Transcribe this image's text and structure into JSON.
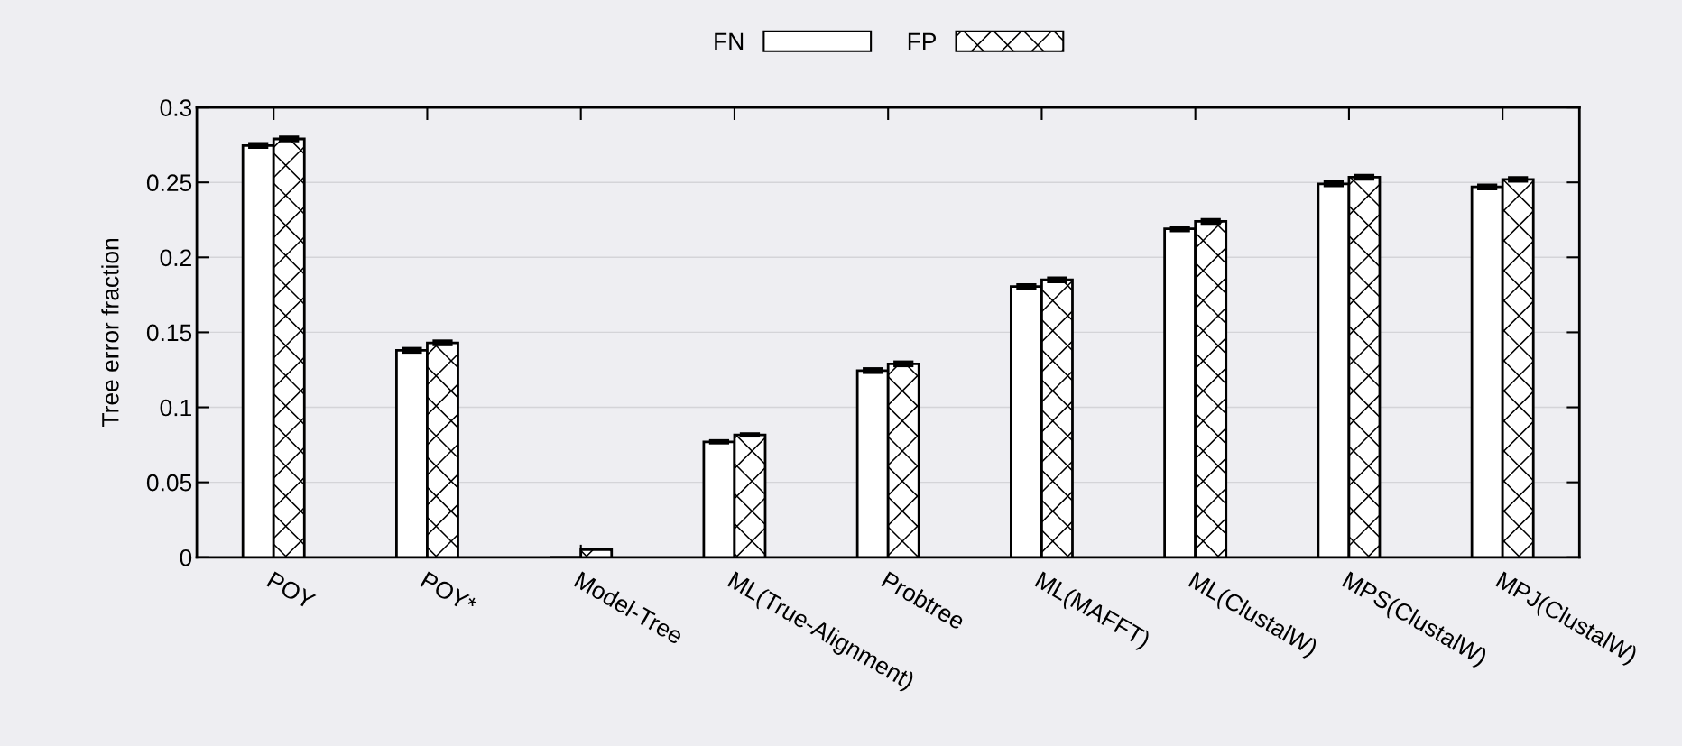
{
  "chart_data": {
    "type": "bar",
    "ylabel": "Tree error fraction",
    "categories": [
      "POY",
      "POY*",
      "Model-Tree",
      "ML(True-Alignment)",
      "Probtree",
      "ML(MAFFT)",
      "ML(ClustalW)",
      "MPS(ClustalW)",
      "MPJ(ClustalW)"
    ],
    "series": [
      {
        "name": "FN",
        "color": "#ffffff",
        "values": [
          0.2746,
          0.138,
          0,
          0.077,
          0.1245,
          0.1805,
          0.219,
          0.249,
          0.247
        ],
        "errors": [
          0.001,
          0.001,
          null,
          0.0005,
          0.001,
          0.001,
          0.001,
          0.001,
          0.001
        ]
      },
      {
        "name": "FP",
        "color": "#ffffff",
        "values": [
          0.279,
          0.143,
          0.005,
          0.0816,
          0.129,
          0.185,
          0.224,
          0.2535,
          0.252
        ],
        "errors": [
          0.001,
          0.001,
          null,
          0.0005,
          0.001,
          0.001,
          0.001,
          0.001,
          0.001
        ]
      }
    ],
    "ylim": [
      0,
      0.3
    ],
    "yticks": [
      0,
      0.05,
      0.1,
      0.15,
      0.2,
      0.25,
      0.3
    ],
    "grid": "y",
    "legend": "top"
  }
}
